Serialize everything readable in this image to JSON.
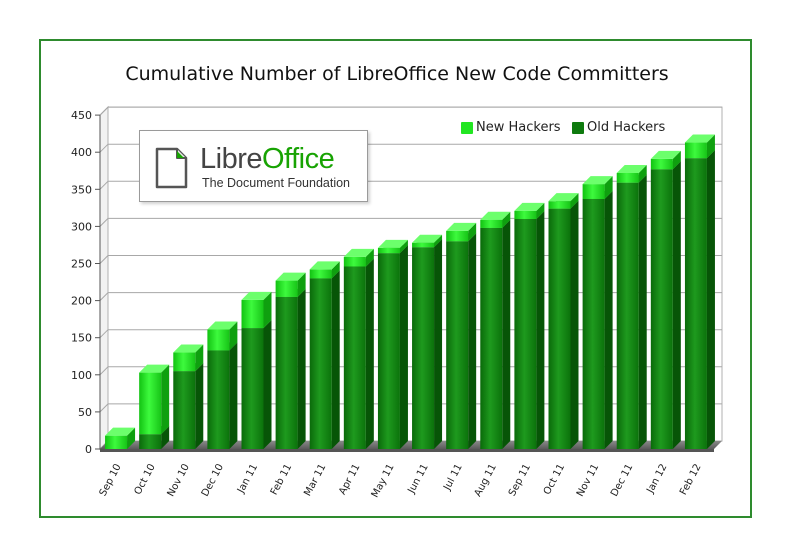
{
  "chart_data": {
    "type": "bar",
    "stacked": true,
    "title": "Cumulative Number of LibreOffice New Code Committers",
    "xlabel": "",
    "ylabel": "",
    "ylim": [
      0,
      450
    ],
    "yticks": [
      0,
      50,
      100,
      150,
      200,
      250,
      300,
      350,
      400,
      450
    ],
    "grid": true,
    "legend_position": "top-right",
    "categories": [
      "Sep 10",
      "Oct 10",
      "Nov 10",
      "Dec 10",
      "Jan 11",
      "Feb 11",
      "Mar 11",
      "Apr 11",
      "May 11",
      "Jun 11",
      "Jul 11",
      "Aug 11",
      "Sep 11",
      "Oct 11",
      "Nov 11",
      "Dec 11",
      "Jan 12",
      "Feb 12"
    ],
    "series": [
      {
        "name": "Old Hackers",
        "color": "#0e7a0e",
        "values": [
          0,
          20,
          105,
          133,
          163,
          205,
          230,
          246,
          264,
          272,
          280,
          298,
          310,
          324,
          337,
          359,
          377,
          392
        ]
      },
      {
        "name": "New Hackers",
        "color": "#22dd22",
        "values": [
          18,
          83,
          25,
          28,
          38,
          22,
          12,
          13,
          7,
          6,
          14,
          11,
          11,
          10,
          20,
          13,
          14,
          21
        ]
      }
    ]
  },
  "logo": {
    "word_part1": "Libre",
    "word_part2": "Office",
    "tagline": "The Document Foundation"
  }
}
